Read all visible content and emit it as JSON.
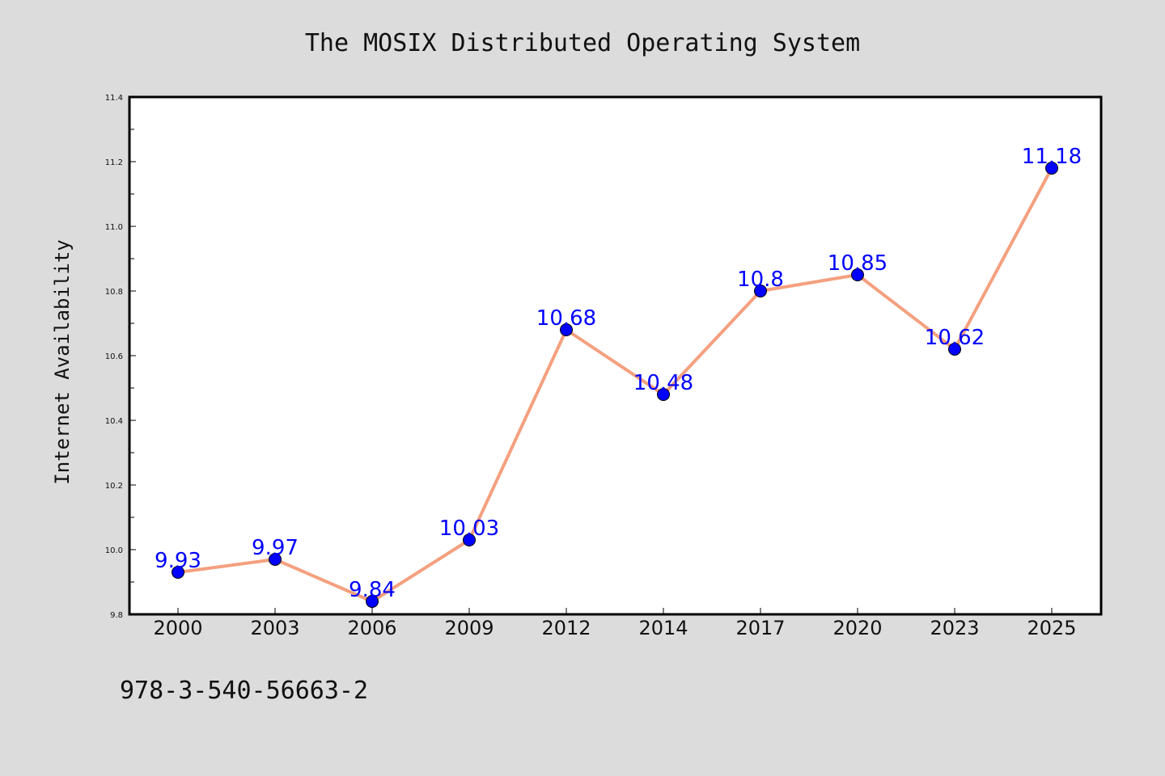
{
  "chart_data": {
    "type": "line",
    "title": "The MOSIX Distributed Operating System",
    "xlabel": "",
    "ylabel": "Internet Availability",
    "categories": [
      "2000",
      "2003",
      "2006",
      "2009",
      "2012",
      "2014",
      "2017",
      "2020",
      "2023",
      "2025"
    ],
    "values": [
      9.93,
      9.97,
      9.84,
      10.03,
      10.68,
      10.48,
      10.8,
      10.85,
      10.62,
      11.18
    ],
    "data_labels": [
      "9.93",
      "9.97",
      "9.84",
      "10.03",
      "10.68",
      "10.48",
      "10.8",
      "10.85",
      "10.62",
      "11.18"
    ],
    "ylim": [
      9.8,
      11.4
    ],
    "yticks": [
      "9.8",
      "10.0",
      "10.2",
      "10.4",
      "10.6",
      "10.8",
      "11.0",
      "11.2",
      "11.4"
    ],
    "grid": false,
    "line_color": "#f4a07f",
    "marker_color": "#0000ff",
    "label_color": "#0000ff"
  },
  "footer_text": "978-3-540-56663-2",
  "colors": {
    "background": "#dcdcdc",
    "plot_background": "#ffffff",
    "axes": "#000000"
  }
}
